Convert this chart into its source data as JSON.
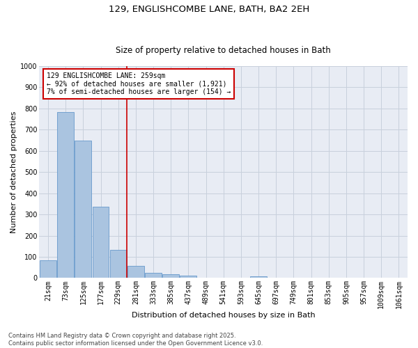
{
  "title_line1": "129, ENGLISHCOMBE LANE, BATH, BA2 2EH",
  "title_line2": "Size of property relative to detached houses in Bath",
  "xlabel": "Distribution of detached houses by size in Bath",
  "ylabel": "Number of detached properties",
  "annotation_line1": "129 ENGLISHCOMBE LANE: 259sqm",
  "annotation_line2": "← 92% of detached houses are smaller (1,921)",
  "annotation_line3": "7% of semi-detached houses are larger (154) →",
  "footer_line1": "Contains HM Land Registry data © Crown copyright and database right 2025.",
  "footer_line2": "Contains public sector information licensed under the Open Government Licence v3.0.",
  "bin_labels": [
    "21sqm",
    "73sqm",
    "125sqm",
    "177sqm",
    "229sqm",
    "281sqm",
    "333sqm",
    "385sqm",
    "437sqm",
    "489sqm",
    "541sqm",
    "593sqm",
    "645sqm",
    "697sqm",
    "749sqm",
    "801sqm",
    "853sqm",
    "905sqm",
    "957sqm",
    "1009sqm",
    "1061sqm"
  ],
  "bar_values": [
    83,
    783,
    648,
    335,
    133,
    57,
    23,
    18,
    10,
    0,
    0,
    0,
    8,
    0,
    0,
    0,
    0,
    0,
    0,
    0,
    0
  ],
  "bar_color": "#aac4e0",
  "bar_edge_color": "#6699cc",
  "reference_line_color": "#cc0000",
  "ylim": [
    0,
    1000
  ],
  "yticks": [
    0,
    100,
    200,
    300,
    400,
    500,
    600,
    700,
    800,
    900,
    1000
  ],
  "grid_color": "#c8d0dc",
  "background_color": "#e8ecf4",
  "annotation_box_color": "#cc0000",
  "title_fontsize": 9.5,
  "subtitle_fontsize": 8.5,
  "axis_label_fontsize": 8,
  "tick_fontsize": 7,
  "annotation_fontsize": 7,
  "footer_fontsize": 6
}
